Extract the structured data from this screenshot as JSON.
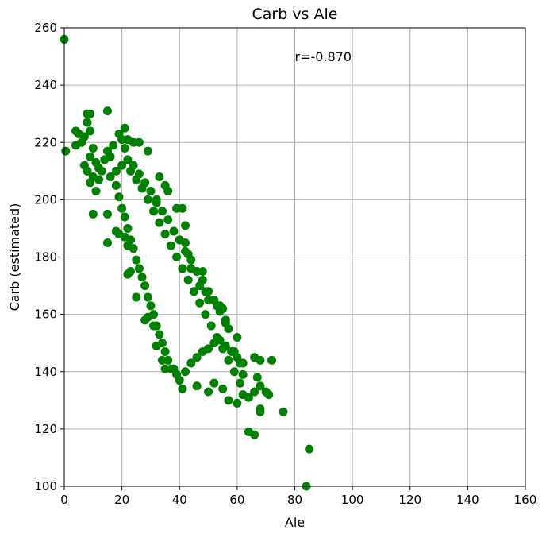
{
  "chart_data": {
    "type": "scatter",
    "title": "Carb vs Ale",
    "xlabel": "Ale",
    "ylabel": "Carb (estimated)",
    "xlim": [
      0,
      160
    ],
    "ylim": [
      100,
      260
    ],
    "xticks": [
      0,
      20,
      40,
      60,
      80,
      100,
      120,
      140,
      160
    ],
    "yticks": [
      100,
      120,
      140,
      160,
      180,
      200,
      220,
      240,
      260
    ],
    "xtick_labels": [
      "0",
      "20",
      "40",
      "60",
      "80",
      "100",
      "120",
      "140",
      "160"
    ],
    "ytick_labels": [
      "100",
      "120",
      "140",
      "160",
      "180",
      "200",
      "220",
      "240",
      "260"
    ],
    "grid": true,
    "marker_color": "#008000",
    "annotation": {
      "text": "r=-0.870",
      "x": 80,
      "y": 250
    },
    "series": [
      {
        "points": [
          [
            0,
            256
          ],
          [
            0.5,
            217
          ],
          [
            4,
            224
          ],
          [
            5,
            223
          ],
          [
            7,
            222
          ],
          [
            8,
            230
          ],
          [
            9,
            230
          ],
          [
            8,
            227
          ],
          [
            9,
            224
          ],
          [
            4,
            219
          ],
          [
            6,
            220
          ],
          [
            7,
            212
          ],
          [
            8,
            210
          ],
          [
            9,
            215
          ],
          [
            10,
            218
          ],
          [
            11,
            213
          ],
          [
            12,
            211
          ],
          [
            10,
            208
          ],
          [
            12,
            207
          ],
          [
            13,
            210
          ],
          [
            14,
            214
          ],
          [
            15,
            217
          ],
          [
            16,
            215
          ],
          [
            17,
            219
          ],
          [
            15,
            231
          ],
          [
            19,
            223
          ],
          [
            21,
            225
          ],
          [
            20,
            221
          ],
          [
            22,
            221
          ],
          [
            21,
            218
          ],
          [
            24,
            220
          ],
          [
            26,
            220
          ],
          [
            29,
            217
          ],
          [
            9,
            206
          ],
          [
            11,
            203
          ],
          [
            10,
            195
          ],
          [
            15,
            195
          ],
          [
            15,
            185
          ],
          [
            18,
            189
          ],
          [
            19,
            188
          ],
          [
            21,
            187
          ],
          [
            22,
            184
          ],
          [
            22,
            174
          ],
          [
            23,
            175
          ],
          [
            25,
            166
          ],
          [
            28,
            158
          ],
          [
            29,
            159
          ],
          [
            31,
            156
          ],
          [
            32,
            149
          ],
          [
            34,
            144
          ],
          [
            35,
            141
          ],
          [
            37,
            141
          ],
          [
            41,
            134
          ],
          [
            46,
            135
          ],
          [
            50,
            133
          ],
          [
            52,
            136
          ],
          [
            55,
            134
          ],
          [
            57,
            130
          ],
          [
            60,
            129
          ],
          [
            62,
            132
          ],
          [
            64,
            131
          ],
          [
            66,
            133
          ],
          [
            68,
            135
          ],
          [
            70,
            133
          ],
          [
            71,
            132
          ],
          [
            67,
            138
          ],
          [
            66,
            145
          ],
          [
            68,
            144
          ],
          [
            72,
            144
          ],
          [
            68,
            127
          ],
          [
            68,
            126
          ],
          [
            76,
            126
          ],
          [
            64,
            119
          ],
          [
            66,
            118
          ],
          [
            85,
            113
          ],
          [
            84,
            100
          ],
          [
            33,
            208
          ],
          [
            35,
            205
          ],
          [
            36,
            203
          ],
          [
            32,
            200
          ],
          [
            39,
            197
          ],
          [
            41,
            197
          ],
          [
            42,
            191
          ],
          [
            40,
            186
          ],
          [
            42,
            185
          ],
          [
            43,
            181
          ],
          [
            44,
            176
          ],
          [
            46,
            175
          ],
          [
            48,
            175
          ],
          [
            47,
            170
          ],
          [
            49,
            168
          ],
          [
            50,
            165
          ],
          [
            53,
            163
          ],
          [
            54,
            163
          ],
          [
            55,
            162
          ],
          [
            56,
            157
          ],
          [
            57,
            155
          ],
          [
            60,
            152
          ],
          [
            59,
            147
          ],
          [
            61,
            143
          ],
          [
            62,
            139
          ],
          [
            18,
            205
          ],
          [
            19,
            201
          ],
          [
            20,
            197
          ],
          [
            21,
            194
          ],
          [
            22,
            190
          ],
          [
            23,
            186
          ],
          [
            24,
            183
          ],
          [
            25,
            179
          ],
          [
            26,
            176
          ],
          [
            27,
            173
          ],
          [
            28,
            170
          ],
          [
            29,
            166
          ],
          [
            30,
            163
          ],
          [
            31,
            160
          ],
          [
            32,
            156
          ],
          [
            33,
            153
          ],
          [
            34,
            150
          ],
          [
            35,
            147
          ],
          [
            36,
            144
          ],
          [
            38,
            141
          ],
          [
            39,
            139
          ],
          [
            40,
            137
          ],
          [
            42,
            140
          ],
          [
            44,
            143
          ],
          [
            46,
            145
          ],
          [
            48,
            147
          ],
          [
            50,
            148
          ],
          [
            52,
            150
          ],
          [
            54,
            151
          ],
          [
            56,
            149
          ],
          [
            58,
            147
          ],
          [
            60,
            145
          ],
          [
            62,
            143
          ],
          [
            24,
            212
          ],
          [
            26,
            209
          ],
          [
            28,
            206
          ],
          [
            30,
            203
          ],
          [
            32,
            199
          ],
          [
            34,
            196
          ],
          [
            36,
            193
          ],
          [
            38,
            189
          ],
          [
            40,
            186
          ],
          [
            42,
            182
          ],
          [
            44,
            179
          ],
          [
            46,
            175
          ],
          [
            48,
            172
          ],
          [
            50,
            168
          ],
          [
            52,
            165
          ],
          [
            54,
            161
          ],
          [
            56,
            158
          ],
          [
            16,
            208
          ],
          [
            18,
            210
          ],
          [
            20,
            212
          ],
          [
            22,
            214
          ],
          [
            23,
            210
          ],
          [
            25,
            207
          ],
          [
            27,
            204
          ],
          [
            29,
            200
          ],
          [
            31,
            196
          ],
          [
            33,
            192
          ],
          [
            35,
            188
          ],
          [
            37,
            184
          ],
          [
            39,
            180
          ],
          [
            41,
            176
          ],
          [
            43,
            172
          ],
          [
            45,
            168
          ],
          [
            47,
            164
          ],
          [
            49,
            160
          ],
          [
            51,
            156
          ],
          [
            53,
            152
          ],
          [
            55,
            148
          ],
          [
            57,
            144
          ],
          [
            59,
            140
          ],
          [
            61,
            136
          ]
        ]
      }
    ]
  }
}
